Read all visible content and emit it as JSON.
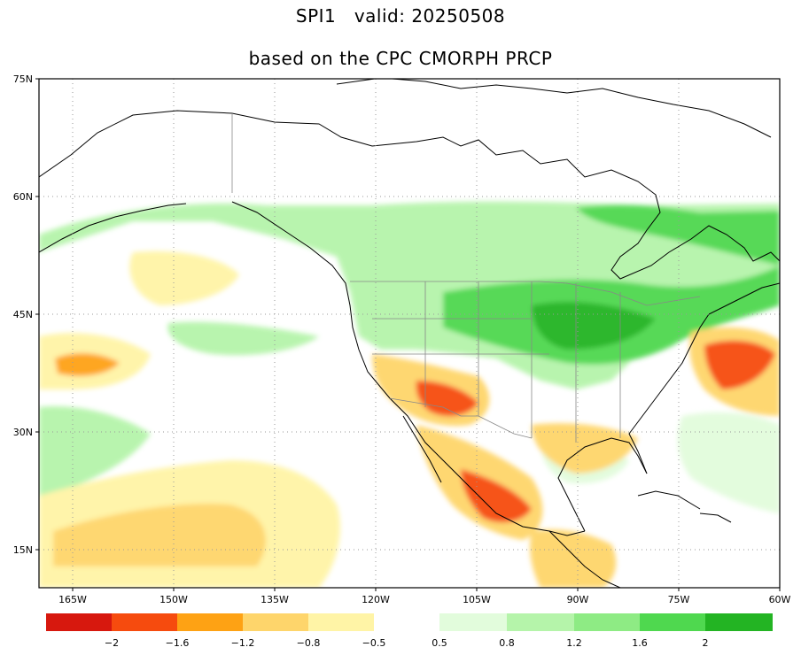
{
  "title": {
    "line1": "SPI1   valid: 20250508",
    "line2": "based on the CPC CMORPH PRCP"
  },
  "map": {
    "lat_range": [
      10,
      75
    ],
    "lon_range": [
      -170,
      -60
    ],
    "lat_labels": [
      "75N",
      "60N",
      "45N",
      "30N",
      "15N"
    ],
    "lon_labels": [
      "165W",
      "150W",
      "135W",
      "120W",
      "105W",
      "90W",
      "75W",
      "60W"
    ],
    "grid": "dotted"
  },
  "legend": {
    "colors": [
      "#d7180e",
      "#f64b0e",
      "#fea214",
      "#fed56b",
      "#fff4a6",
      "#ffffff",
      "#e2fcdc",
      "#b5f4aa",
      "#8eeb84",
      "#4fd84f",
      "#23b423"
    ],
    "labels": [
      "−2",
      "−1.6",
      "−1.2",
      "−0.8",
      "−0.5",
      "0.5",
      "0.8",
      "1.2",
      "1.6",
      "2"
    ]
  }
}
